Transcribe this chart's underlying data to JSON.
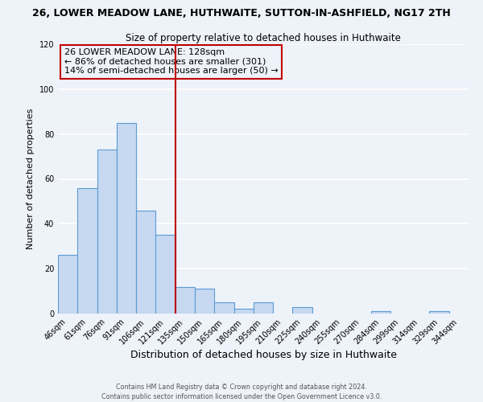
{
  "title_line1": "26, LOWER MEADOW LANE, HUTHWAITE, SUTTON-IN-ASHFIELD, NG17 2TH",
  "title_line2": "Size of property relative to detached houses in Huthwaite",
  "xlabel": "Distribution of detached houses by size in Huthwaite",
  "ylabel": "Number of detached properties",
  "bar_labels": [
    "46sqm",
    "61sqm",
    "76sqm",
    "91sqm",
    "106sqm",
    "121sqm",
    "135sqm",
    "150sqm",
    "165sqm",
    "180sqm",
    "195sqm",
    "210sqm",
    "225sqm",
    "240sqm",
    "255sqm",
    "270sqm",
    "284sqm",
    "299sqm",
    "314sqm",
    "329sqm",
    "344sqm"
  ],
  "bar_values": [
    26,
    56,
    73,
    85,
    46,
    35,
    12,
    11,
    5,
    2,
    5,
    0,
    3,
    0,
    0,
    0,
    1,
    0,
    0,
    1,
    0
  ],
  "bar_color": "#c6d9f0",
  "bar_edge_color": "#5b9bd5",
  "vline_x": 6.0,
  "vline_color": "#c00000",
  "annotation_lines": [
    "26 LOWER MEADOW LANE: 128sqm",
    "← 86% of detached houses are smaller (301)",
    "14% of semi-detached houses are larger (50) →"
  ],
  "annotation_box_color": "#c00000",
  "ylim": [
    0,
    120
  ],
  "yticks": [
    0,
    20,
    40,
    60,
    80,
    100,
    120
  ],
  "footer_line1": "Contains HM Land Registry data © Crown copyright and database right 2024.",
  "footer_line2": "Contains public sector information licensed under the Open Government Licence v3.0.",
  "background_color": "#eef2f9",
  "grid_color": "#ffffff"
}
